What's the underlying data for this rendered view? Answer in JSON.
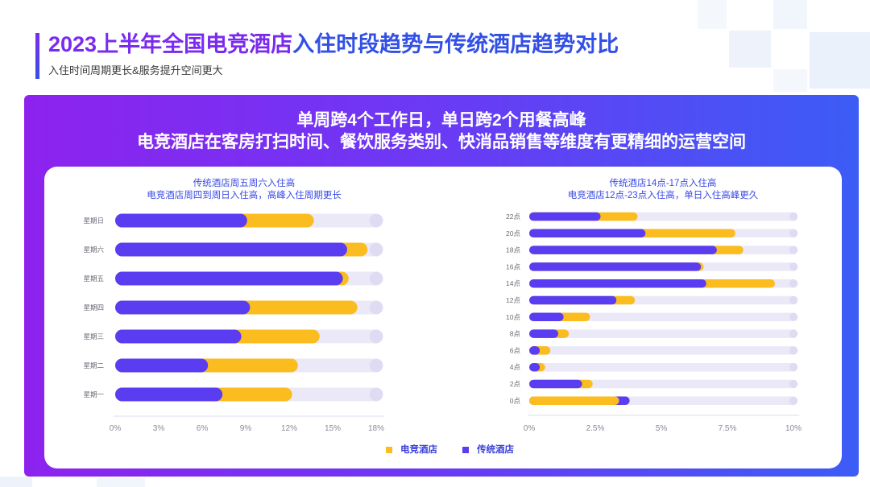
{
  "header": {
    "title_part1": "2023上半年全国电竞酒店",
    "title_part2": "入住时段趋势与传统酒店趋势对比",
    "subtitle": "入住时间周期更长&服务提升空间更大"
  },
  "banner": {
    "line1": "单周跨4个工作日，单日跨2个用餐高峰",
    "line2": "电竞酒店在客房打扫时间、餐饮服务类别、快消品销售等维度有更精细的运营空间"
  },
  "colors": {
    "title_purple": "#7a2bef",
    "title_blue": "#3350e6",
    "esports_hotel": "#fbbc1f",
    "traditional_hotel": "#5b3df1",
    "track": "#ebe9f8",
    "track_end": "#dedbf3",
    "banner_start": "#8d22ee",
    "banner_end": "#3c5cf6"
  },
  "legend": {
    "position": "bottom"
  },
  "chart_data": [
    {
      "type": "bar",
      "orientation": "horizontal",
      "title": "传统酒店周五周六入住高",
      "subtitle": "电竞酒店周四到周日入住高，高峰入住周期更长",
      "categories": [
        "星期日",
        "星期六",
        "星期五",
        "星期四",
        "星期三",
        "星期二",
        "星期一"
      ],
      "series": [
        {
          "name": "电竞酒店",
          "color": "#fbbc1f",
          "values": [
            13.7,
            17.4,
            16.1,
            16.7,
            14.1,
            12.6,
            12.2
          ]
        },
        {
          "name": "传统酒店",
          "color": "#5b3df1",
          "values": [
            9.1,
            16.0,
            15.7,
            9.3,
            8.7,
            6.4,
            7.4
          ]
        }
      ],
      "xlim": [
        0,
        18
      ],
      "xticks": [
        0,
        3,
        6,
        9,
        12,
        15,
        18
      ],
      "xtick_labels": [
        "0%",
        "3%",
        "6%",
        "9%",
        "12%",
        "15%",
        "18%"
      ],
      "grid": false
    },
    {
      "type": "bar",
      "orientation": "horizontal",
      "title": "传统酒店14点-17点入住高",
      "subtitle": "电竞酒店12点-23点入住高，单日入住高峰更久",
      "categories": [
        "22点",
        "20点",
        "18点",
        "16点",
        "14点",
        "12点",
        "10点",
        "8点",
        "6点",
        "4点",
        "2点",
        "0点"
      ],
      "series": [
        {
          "name": "电竞酒店",
          "color": "#fbbc1f",
          "values": [
            4.1,
            7.8,
            8.1,
            6.6,
            9.3,
            4.0,
            2.3,
            1.5,
            0.8,
            0.6,
            2.4,
            3.4
          ]
        },
        {
          "name": "传统酒店",
          "color": "#5b3df1",
          "values": [
            2.7,
            4.4,
            7.1,
            6.5,
            6.7,
            3.3,
            1.3,
            1.1,
            0.4,
            0.4,
            2.0,
            3.8
          ]
        }
      ],
      "xlim": [
        0,
        10
      ],
      "xticks": [
        0,
        2.5,
        5,
        7.5,
        10
      ],
      "xtick_labels": [
        "0%",
        "2.5%",
        "5%",
        "7.5%",
        "10%"
      ],
      "grid": false
    }
  ]
}
